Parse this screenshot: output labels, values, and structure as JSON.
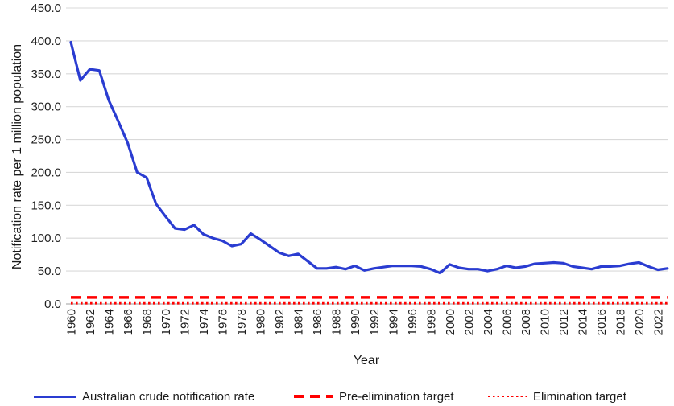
{
  "chart_data": {
    "type": "line",
    "title": "",
    "xlabel": "Year",
    "ylabel": "Notification rate per 1 million population",
    "ylim": [
      0,
      450
    ],
    "ytick_step": 50,
    "ytick_decimals": 1,
    "xtick_start": 1960,
    "xtick_end": 2022,
    "xtick_step": 2,
    "grid": "horizontal-only",
    "legend_position": "bottom",
    "colors": {
      "series_blue": "#2a3cd1",
      "target_red": "#ff0000",
      "gridline_gray": "#d9d9d9",
      "axis_gray": "#bfbfbf"
    },
    "series": [
      {
        "name": "Australian crude notification rate",
        "style": "solid",
        "color": "#2a3cd1",
        "x_start": 1960,
        "x_end": 2023,
        "values": [
          398,
          340,
          357,
          355,
          310,
          278,
          245,
          200,
          192,
          152,
          133,
          115,
          113,
          120,
          106,
          100,
          96,
          88,
          91,
          107,
          98,
          88,
          78,
          73,
          76,
          65,
          54,
          54,
          56,
          53,
          58,
          51,
          54,
          56,
          58,
          58,
          58,
          57,
          53,
          47,
          60,
          55,
          53,
          53,
          50,
          53,
          58,
          55,
          57,
          61,
          62,
          63,
          62,
          57,
          55,
          53,
          57,
          57,
          58,
          61,
          63,
          57,
          52,
          54
        ]
      }
    ],
    "reference_lines": [
      {
        "name": "Pre-elimination target",
        "value": 10,
        "style": "dashed",
        "color": "#ff0000"
      },
      {
        "name": "Elimination target",
        "value": 1,
        "style": "dotted",
        "color": "#ff0000"
      }
    ]
  }
}
